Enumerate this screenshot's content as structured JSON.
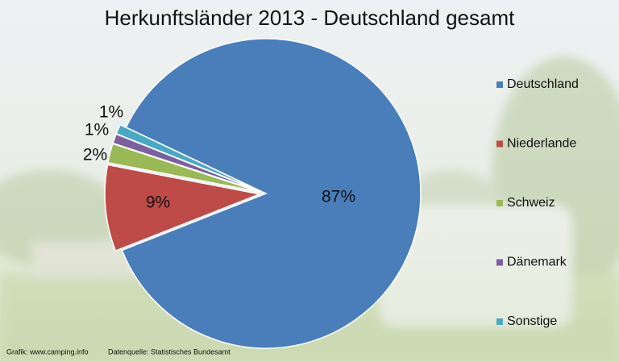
{
  "chart_data": {
    "type": "pie",
    "title": "Herkunftsländer 2013 - Deutschland gesamt",
    "categories": [
      "Deutschland",
      "Niederlande",
      "Schweiz",
      "Dänemark",
      "Sonstige"
    ],
    "values": [
      87,
      9,
      2,
      1,
      1
    ],
    "value_labels": [
      "87%",
      "9%",
      "2%",
      "1%",
      "1%"
    ],
    "colors": [
      "#4a7ebb",
      "#be4b48",
      "#98b954",
      "#7d5fa0",
      "#46aac5"
    ],
    "legend": "right",
    "annotations": [
      "Grafik: www.camping.info",
      "Datenquelle: Statistisches Bundesamt"
    ]
  }
}
